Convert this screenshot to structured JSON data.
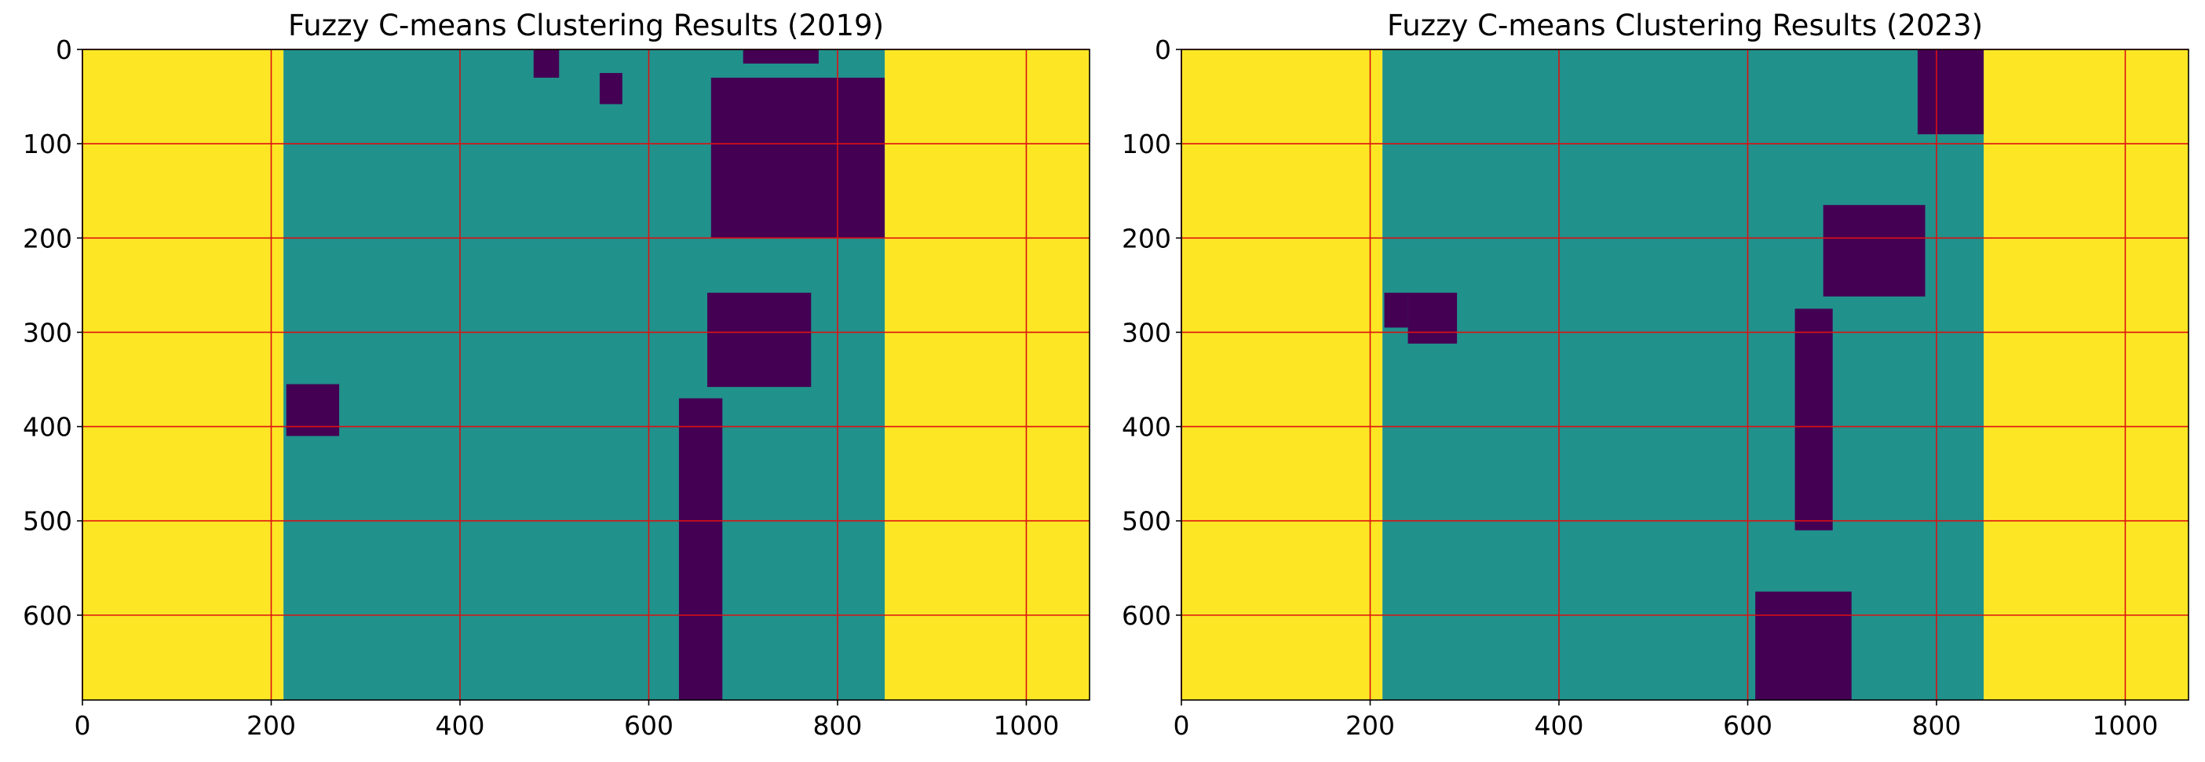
{
  "colors": {
    "background_class": "#fde725",
    "main_class": "#21918c",
    "dark_class": "#440154",
    "grid": "#dd1111",
    "axis": "#000000"
  },
  "chart_data": [
    {
      "type": "heatmap",
      "title": "Fuzzy C-means Clustering Results (2019)",
      "xlabel": "",
      "ylabel": "",
      "xlim": [
        0,
        1067
      ],
      "ylim": [
        690,
        0
      ],
      "xticks": [
        0,
        200,
        400,
        600,
        800,
        1000
      ],
      "yticks": [
        0,
        100,
        200,
        300,
        400,
        500,
        600
      ],
      "grid": true,
      "grid_color": "red",
      "classes": [
        {
          "color": "#fde725",
          "x_ranges": [
            [
              0,
              213
            ],
            [
              850,
              1067
            ]
          ]
        },
        {
          "color": "#21918c",
          "x_range": [
            213,
            850
          ]
        },
        {
          "color": "#440154",
          "patches": [
            {
              "x": [
                216,
                272
              ],
              "y": [
                355,
                410
              ]
            },
            {
              "x": [
                662,
                772
              ],
              "y": [
                258,
                358
              ]
            },
            {
              "x": [
                632,
                678
              ],
              "y": [
                370,
                690
              ]
            },
            {
              "x": [
                666,
                850
              ],
              "y": [
                30,
                200
              ]
            },
            {
              "x": [
                548,
                572
              ],
              "y": [
                25,
                58
              ]
            },
            {
              "x": [
                478,
                505
              ],
              "y": [
                0,
                30
              ]
            },
            {
              "x": [
                700,
                780
              ],
              "y": [
                0,
                15
              ]
            }
          ]
        }
      ]
    },
    {
      "type": "heatmap",
      "title": "Fuzzy C-means Clustering Results (2023)",
      "xlabel": "",
      "ylabel": "",
      "xlim": [
        0,
        1067
      ],
      "ylim": [
        690,
        0
      ],
      "xticks": [
        0,
        200,
        400,
        600,
        800,
        1000
      ],
      "yticks": [
        0,
        100,
        200,
        300,
        400,
        500,
        600
      ],
      "grid": true,
      "grid_color": "red",
      "classes": [
        {
          "color": "#fde725",
          "x_ranges": [
            [
              0,
              213
            ],
            [
              850,
              1067
            ]
          ]
        },
        {
          "color": "#21918c",
          "x_range": [
            213,
            850
          ]
        },
        {
          "color": "#440154",
          "patches": [
            {
              "x": [
                215,
                240
              ],
              "y": [
                258,
                295
              ]
            },
            {
              "x": [
                240,
                292
              ],
              "y": [
                258,
                312
              ]
            },
            {
              "x": [
                680,
                788
              ],
              "y": [
                165,
                262
              ]
            },
            {
              "x": [
                650,
                690
              ],
              "y": [
                275,
                510
              ]
            },
            {
              "x": [
                608,
                710
              ],
              "y": [
                575,
                690
              ]
            },
            {
              "x": [
                780,
                850
              ],
              "y": [
                0,
                90
              ]
            }
          ]
        }
      ]
    }
  ]
}
